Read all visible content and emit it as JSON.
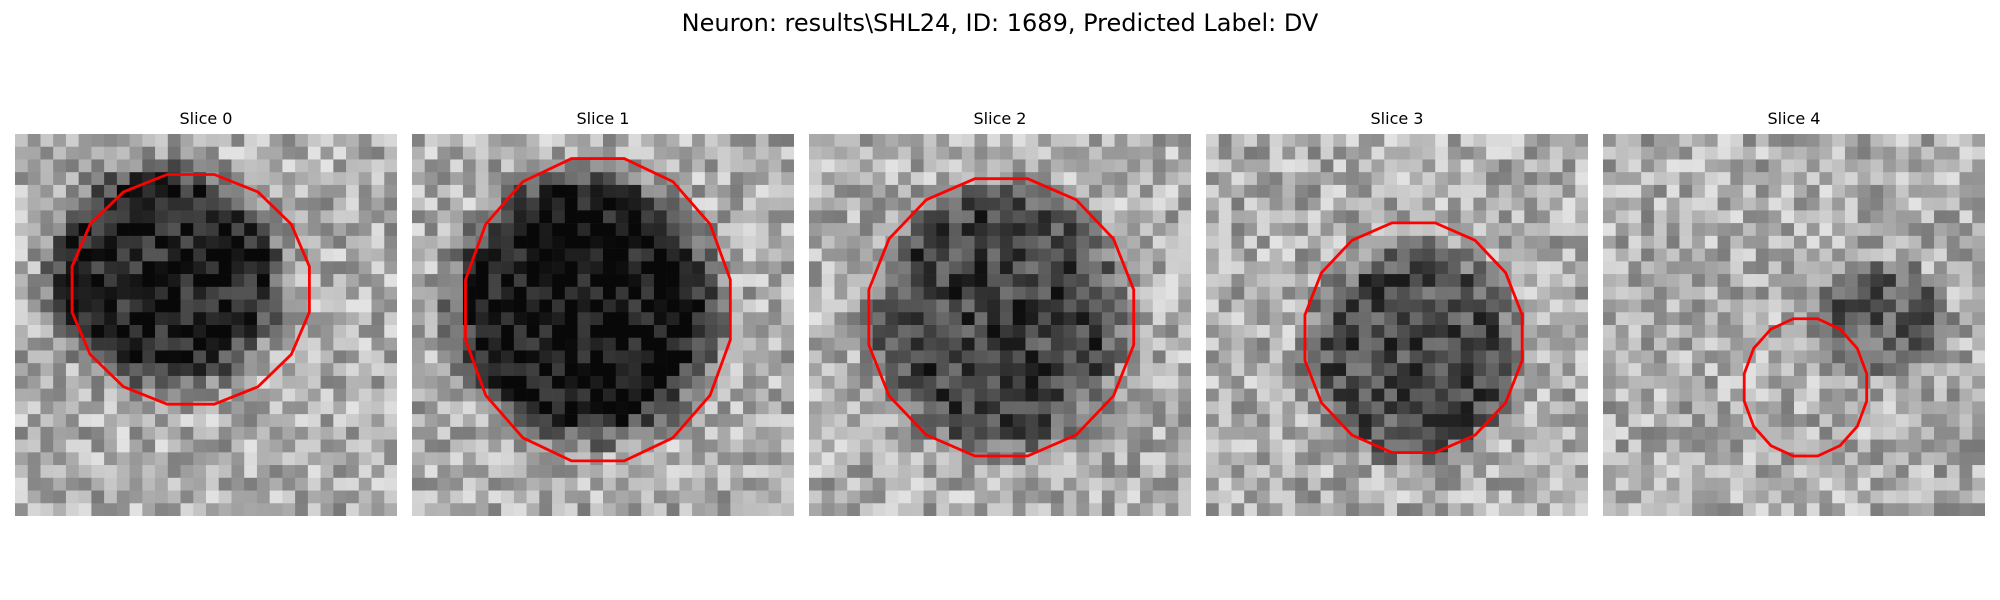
{
  "figure": {
    "title": "Neuron: results\\SHL24, ID: 1689, Predicted Label: DV"
  },
  "colors": {
    "outline": "#ff0000",
    "background": "#ffffff"
  },
  "slices": [
    {
      "title": "Slice 0"
    },
    {
      "title": "Slice 1"
    },
    {
      "title": "Slice 2"
    },
    {
      "title": "Slice 3"
    },
    {
      "title": "Slice 4"
    }
  ]
}
